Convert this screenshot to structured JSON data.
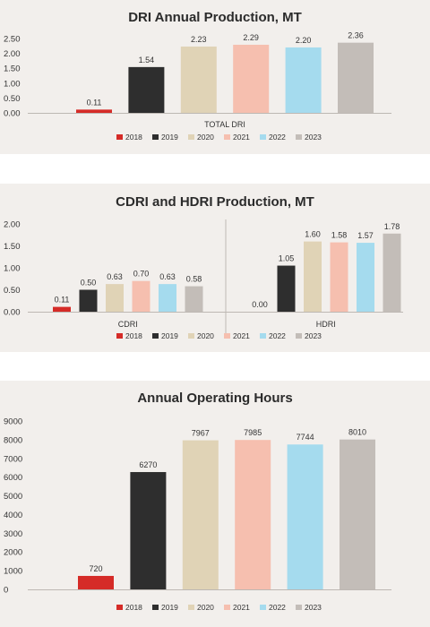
{
  "legend": [
    {
      "label": "2018",
      "color": "#d52b27"
    },
    {
      "label": "2019",
      "color": "#2e2e2e"
    },
    {
      "label": "2020",
      "color": "#e0d3b6"
    },
    {
      "label": "2021",
      "color": "#f6bfaf"
    },
    {
      "label": "2022",
      "color": "#a5dbee"
    },
    {
      "label": "2023",
      "color": "#c3bdb8"
    }
  ],
  "chart_data": [
    {
      "type": "bar",
      "title": "DRI Annual Production, MT",
      "ylim": [
        0,
        2.5
      ],
      "yticks": [
        "0.00",
        "0.50",
        "1.00",
        "1.50",
        "2.00",
        "2.50"
      ],
      "categories": [
        "TOTAL DRI"
      ],
      "series": [
        {
          "name": "2018",
          "values": [
            0.11
          ],
          "labels": [
            "0.11"
          ]
        },
        {
          "name": "2019",
          "values": [
            1.54
          ],
          "labels": [
            "1.54"
          ]
        },
        {
          "name": "2020",
          "values": [
            2.23
          ],
          "labels": [
            "2.23"
          ]
        },
        {
          "name": "2021",
          "values": [
            2.29
          ],
          "labels": [
            "2.29"
          ]
        },
        {
          "name": "2022",
          "values": [
            2.2
          ],
          "labels": [
            "2.20"
          ]
        },
        {
          "name": "2023",
          "values": [
            2.36
          ],
          "labels": [
            "2.36"
          ]
        }
      ],
      "grid": false,
      "legend_position": "bottom"
    },
    {
      "type": "bar",
      "title": "CDRI and HDRI Production, MT",
      "ylim": [
        0,
        2.0
      ],
      "yticks": [
        "0.00",
        "0.50",
        "1.00",
        "1.50",
        "2.00"
      ],
      "categories": [
        "CDRI",
        "HDRI"
      ],
      "series": [
        {
          "name": "2018",
          "values": [
            0.11,
            0.0
          ],
          "labels": [
            "0.11",
            "0.00"
          ]
        },
        {
          "name": "2019",
          "values": [
            0.5,
            1.05
          ],
          "labels": [
            "0.50",
            "1.05"
          ]
        },
        {
          "name": "2020",
          "values": [
            0.63,
            1.6
          ],
          "labels": [
            "0.63",
            "1.60"
          ]
        },
        {
          "name": "2021",
          "values": [
            0.7,
            1.58
          ],
          "labels": [
            "0.70",
            "1.58"
          ]
        },
        {
          "name": "2022",
          "values": [
            0.63,
            1.57
          ],
          "labels": [
            "0.63",
            "1.57"
          ]
        },
        {
          "name": "2023",
          "values": [
            0.58,
            1.78
          ],
          "labels": [
            "0.58",
            "1.78"
          ]
        }
      ],
      "grid": false,
      "legend_position": "bottom"
    },
    {
      "type": "bar",
      "title": "Annual Operating Hours",
      "ylim": [
        0,
        9000
      ],
      "yticks": [
        "0",
        "1000",
        "2000",
        "3000",
        "4000",
        "5000",
        "6000",
        "7000",
        "8000",
        "9000"
      ],
      "categories": [
        ""
      ],
      "series": [
        {
          "name": "2018",
          "values": [
            720
          ],
          "labels": [
            "720"
          ]
        },
        {
          "name": "2019",
          "values": [
            6270
          ],
          "labels": [
            "6270"
          ]
        },
        {
          "name": "2020",
          "values": [
            7967
          ],
          "labels": [
            "7967"
          ]
        },
        {
          "name": "2021",
          "values": [
            7985
          ],
          "labels": [
            "7985"
          ]
        },
        {
          "name": "2022",
          "values": [
            7744
          ],
          "labels": [
            "7744"
          ]
        },
        {
          "name": "2023",
          "values": [
            8010
          ],
          "labels": [
            "8010"
          ]
        }
      ],
      "grid": false,
      "legend_position": "bottom"
    }
  ]
}
